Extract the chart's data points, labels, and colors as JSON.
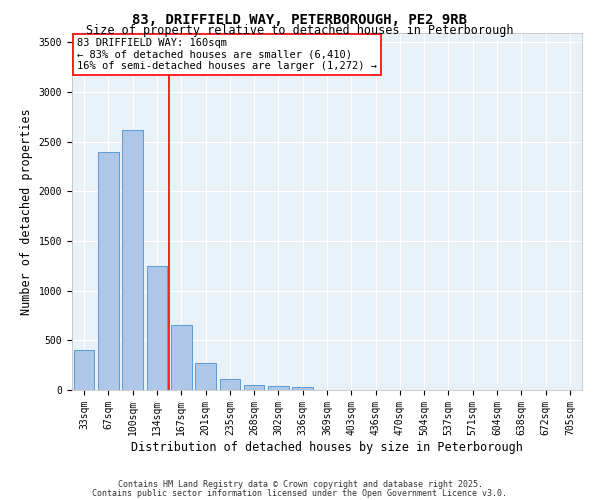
{
  "title1": "83, DRIFFIELD WAY, PETERBOROUGH, PE2 9RB",
  "title2": "Size of property relative to detached houses in Peterborough",
  "xlabel": "Distribution of detached houses by size in Peterborough",
  "ylabel": "Number of detached properties",
  "categories": [
    "33sqm",
    "67sqm",
    "100sqm",
    "134sqm",
    "167sqm",
    "201sqm",
    "235sqm",
    "268sqm",
    "302sqm",
    "336sqm",
    "369sqm",
    "403sqm",
    "436sqm",
    "470sqm",
    "504sqm",
    "537sqm",
    "571sqm",
    "604sqm",
    "638sqm",
    "672sqm",
    "705sqm"
  ],
  "values": [
    400,
    2400,
    2620,
    1250,
    650,
    270,
    115,
    55,
    45,
    30,
    5,
    0,
    0,
    0,
    0,
    0,
    0,
    0,
    0,
    0,
    0
  ],
  "bar_color": "#aec6e8",
  "bar_edge_color": "#5b9bd5",
  "vline_color": "red",
  "annotation_text": "83 DRIFFIELD WAY: 160sqm\n← 83% of detached houses are smaller (6,410)\n16% of semi-detached houses are larger (1,272) →",
  "annotation_box_color": "white",
  "annotation_box_edge_color": "red",
  "ylim": [
    0,
    3600
  ],
  "yticks": [
    0,
    500,
    1000,
    1500,
    2000,
    2500,
    3000,
    3500
  ],
  "bg_color": "#e8f0f8",
  "grid_color": "white",
  "footer1": "Contains HM Land Registry data © Crown copyright and database right 2025.",
  "footer2": "Contains public sector information licensed under the Open Government Licence v3.0.",
  "title1_fontsize": 10,
  "title2_fontsize": 8.5,
  "tick_fontsize": 7,
  "label_fontsize": 8.5,
  "annotation_fontsize": 7.5,
  "footer_fontsize": 6
}
